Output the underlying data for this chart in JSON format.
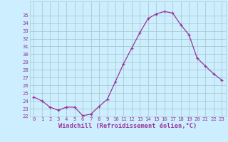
{
  "x": [
    0,
    1,
    2,
    3,
    4,
    5,
    6,
    7,
    8,
    9,
    10,
    11,
    12,
    13,
    14,
    15,
    16,
    17,
    18,
    19,
    20,
    21,
    22,
    23
  ],
  "y": [
    24.5,
    24.0,
    23.2,
    22.8,
    23.2,
    23.2,
    22.1,
    22.3,
    23.3,
    24.2,
    26.5,
    28.8,
    30.8,
    32.8,
    34.6,
    35.2,
    35.5,
    35.3,
    33.8,
    32.5,
    29.5,
    28.5,
    27.5,
    26.7
  ],
  "ylim": [
    22,
    36
  ],
  "yticks": [
    22,
    23,
    24,
    25,
    26,
    27,
    28,
    29,
    30,
    31,
    32,
    33,
    34,
    35
  ],
  "xticks": [
    0,
    1,
    2,
    3,
    4,
    5,
    6,
    7,
    8,
    9,
    10,
    11,
    12,
    13,
    14,
    15,
    16,
    17,
    18,
    19,
    20,
    21,
    22,
    23
  ],
  "xlabel": "Windchill (Refroidissement éolien,°C)",
  "line_color": "#993399",
  "marker": "+",
  "bg_color": "#cceeff",
  "grid_color": "#aacccc",
  "tick_color": "#993399",
  "label_color": "#993399",
  "tick_fontsize": 5.2,
  "xlabel_fontsize": 6.2
}
